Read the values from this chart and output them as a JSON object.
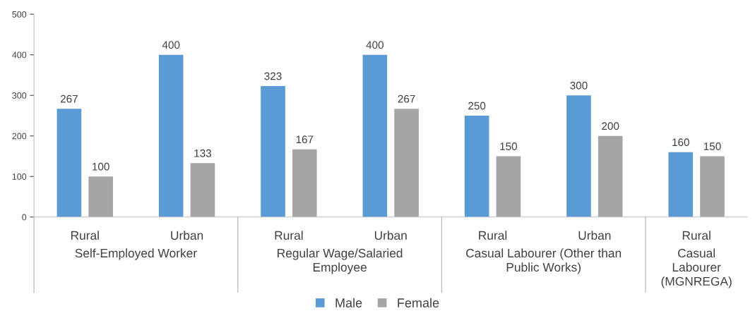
{
  "chart_data": {
    "type": "bar",
    "categories": [
      "Rural",
      "Urban",
      "Rural",
      "Urban",
      "Rural",
      "Urban",
      "Rural"
    ],
    "series": [
      {
        "name": "Male",
        "color": "#5b9bd5",
        "values": [
          267,
          400,
          323,
          400,
          250,
          300,
          160
        ]
      },
      {
        "name": "Female",
        "color": "#a5a5a5",
        "values": [
          100,
          133,
          167,
          267,
          150,
          200,
          150
        ]
      }
    ],
    "annotations": [
      "Self-Employed Worker",
      "Regular Wage/Salaried\nEmployee",
      "Casual Labourer (Other than\nPublic Works)",
      "Casual\nLabourer\n(MGNREGA)"
    ],
    "ylim": [
      0,
      500
    ],
    "yticks": [
      0,
      100,
      200,
      300,
      400,
      500
    ],
    "data_labels": true,
    "grid": false,
    "legend": "bottom"
  }
}
